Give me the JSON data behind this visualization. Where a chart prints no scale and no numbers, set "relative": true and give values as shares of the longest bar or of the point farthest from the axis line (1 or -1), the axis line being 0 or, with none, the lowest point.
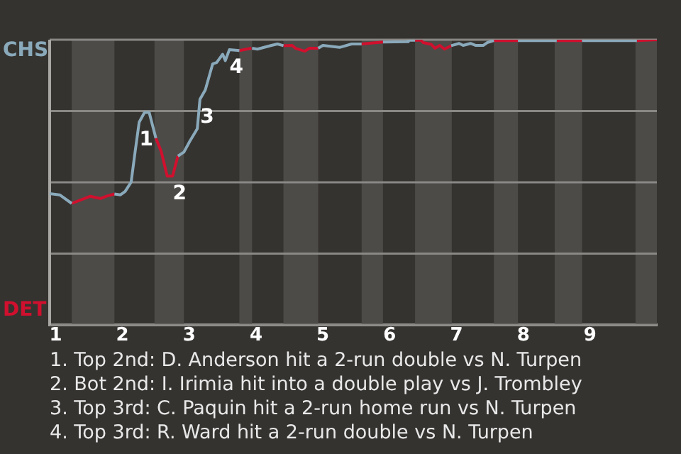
{
  "chart_data": {
    "type": "line",
    "series": [
      {
        "color": "#8aaabb",
        "x": [
          0.91,
          1.06,
          1.24,
          1.5,
          1.88,
          1.97,
          2.04,
          2.13,
          2.19,
          2.25,
          2.33,
          2.4,
          2.5,
          2.6,
          2.83,
          2.92,
          3.01,
          3.12,
          3.16,
          3.24,
          3.35,
          3.41,
          3.5,
          3.54,
          3.6,
          3.75,
          3.9,
          3.94,
          4.02,
          4.23,
          4.32,
          4.41,
          4.7,
          4.93,
          5.0,
          5.25,
          5.43,
          5.58,
          5.7,
          5.9,
          6.27,
          6.28,
          6.38,
          6.6,
          6.92,
          7.04,
          7.1,
          7.21,
          7.29,
          7.4,
          7.46,
          7.56,
          7.8,
          7.92,
          8.5,
          8.7,
          8.88,
          9.7
        ],
        "values": [
          0.46,
          0.456,
          0.426,
          null,
          0.459,
          0.456,
          0.468,
          0.501,
          0.608,
          0.711,
          0.745,
          0.745,
          0.655,
          null,
          0.592,
          0.606,
          0.645,
          0.688,
          0.791,
          0.824,
          0.915,
          0.92,
          0.949,
          0.927,
          0.965,
          0.962,
          null,
          0.97,
          0.967,
          0.98,
          0.985,
          0.979,
          null,
          0.97,
          0.98,
          0.973,
          0.985,
          0.985,
          null,
          0.992,
          0.993,
          0.998,
          0.998,
          null,
          0.979,
          0.987,
          0.98,
          0.987,
          0.98,
          0.98,
          0.99,
          0.997,
          null,
          0.997,
          0.997,
          null,
          0.997,
          0.997
        ]
      },
      {
        "color": "#d0102e",
        "x": [
          1.24,
          1.52,
          1.67,
          1.76,
          1.88,
          2.2,
          2.5,
          2.58,
          2.67,
          2.75,
          2.83,
          3.3,
          3.75,
          3.93,
          3.94,
          4.2,
          4.41,
          4.54,
          4.59,
          4.73,
          4.8,
          4.93,
          5.2,
          5.58,
          5.9,
          6.1,
          6.38,
          6.47,
          6.5,
          6.62,
          6.68,
          6.75,
          6.82,
          6.92,
          7.2,
          7.56,
          7.67,
          7.92,
          8.2,
          8.5,
          8.88,
          9.3,
          9.7,
          10
        ],
        "values": [
          0.426,
          0.451,
          0.443,
          0.451,
          0.459,
          null,
          0.655,
          0.608,
          0.522,
          0.522,
          0.592,
          null,
          0.962,
          0.97,
          0.97,
          null,
          0.979,
          0.98,
          0.97,
          0.96,
          0.97,
          0.97,
          null,
          0.985,
          0.992,
          null,
          0.998,
          0.998,
          0.99,
          0.984,
          0.97,
          0.98,
          0.967,
          0.979,
          null,
          0.997,
          0.997,
          0.997,
          null,
          0.997,
          0.997,
          null,
          0.997,
          1
        ]
      }
    ],
    "xlim": [
      0.91,
      10
    ],
    "xticks": [
      1,
      2,
      3,
      4,
      5,
      6,
      7,
      8,
      9
    ],
    "relative": true,
    "grid": "y",
    "marker": "none",
    "legend": false,
    "bands": [
      {
        "axis": "x",
        "from": 1.24,
        "to": 1.88,
        "color": "#4d4b48"
      },
      {
        "axis": "x",
        "from": 2.48,
        "to": 2.92,
        "color": "#4d4b48"
      },
      {
        "axis": "x",
        "from": 3.75,
        "to": 3.94,
        "color": "#4d4b48"
      },
      {
        "axis": "x",
        "from": 4.41,
        "to": 4.93,
        "color": "#4d4b48"
      },
      {
        "axis": "x",
        "from": 5.58,
        "to": 5.9,
        "color": "#4d4b48"
      },
      {
        "axis": "x",
        "from": 6.38,
        "to": 6.93,
        "color": "#4d4b48"
      },
      {
        "axis": "x",
        "from": 7.56,
        "to": 7.92,
        "color": "#4d4b48"
      },
      {
        "axis": "x",
        "from": 8.47,
        "to": 8.88,
        "color": "#4d4b48"
      },
      {
        "axis": "x",
        "from": 9.68,
        "to": 10,
        "color": "#4d4b48"
      }
    ],
    "annotations": [
      {
        "text": "1",
        "x": 2.25,
        "y": 0.711
      },
      {
        "text": "2",
        "x": 2.75,
        "y": 0.522
      },
      {
        "text": "3",
        "x": 3.16,
        "y": 0.791
      },
      {
        "text": "4",
        "x": 3.6,
        "y": 0.965
      },
      "CHS",
      "DET",
      "1. Top 2nd: D. Anderson hit a 2-run double vs N. Turpen",
      "2. Bot 2nd: I. Irimia hit into a double play vs J. Trombley",
      "3. Top 3rd: C. Paquin hit a 2-run home run vs N. Turpen",
      "4. Top 3rd: R. Ward hit a 2-run double vs N. Turpen"
    ]
  }
}
